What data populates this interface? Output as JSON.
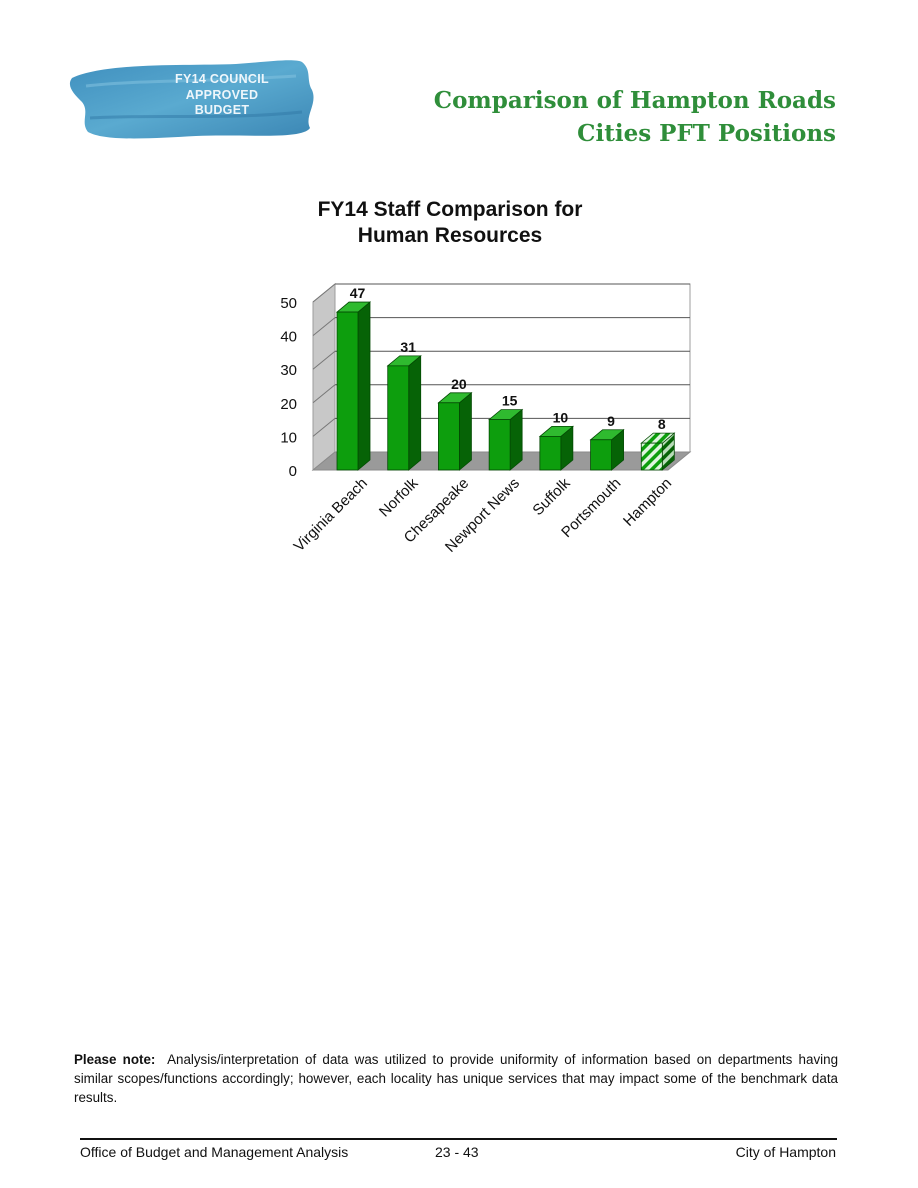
{
  "badge": {
    "line1": "FY14 COUNCIL",
    "line2": "APPROVED",
    "line3": "BUDGET"
  },
  "page_title": {
    "line1": "Comparison of Hampton Roads",
    "line2": "Cities PFT Positions"
  },
  "colors": {
    "title_green": "#2f8e3a",
    "bar_green": "#0d9e0d",
    "bar_dark": "#066306",
    "bar_top": "#2fba2f",
    "badge_blue": "#4e9fc6",
    "floor_gray": "#9a9a9a"
  },
  "chart_data": {
    "type": "bar",
    "title": "FY14  Staff Comparison for Human Resources",
    "title_lines": [
      "FY14  Staff Comparison for",
      "Human Resources"
    ],
    "categories": [
      "Virginia Beach",
      "Norfolk",
      "Chesapeake",
      "Newport News",
      "Suffolk",
      "Portsmouth",
      "Hampton"
    ],
    "values": [
      47,
      31,
      20,
      15,
      10,
      9,
      8
    ],
    "data_labels": [
      "47",
      "31",
      "20",
      "15",
      "10",
      "9",
      "8"
    ],
    "highlight_category": "Hampton",
    "ylim": [
      0,
      50
    ],
    "yticks": [
      0,
      10,
      20,
      30,
      40,
      50
    ],
    "xlabel": "",
    "ylabel": "",
    "grid": true,
    "legend": "none",
    "style": "3d"
  },
  "note": {
    "label": "Please note:",
    "text": "Analysis/interpretation of data was utilized to provide uniformity of information based on departments having similar scopes/functions accordingly; however, each locality has unique services that may impact some of the benchmark data results."
  },
  "footer": {
    "left": "Office of Budget and Management Analysis",
    "center": "23 - 43",
    "right": "City of Hampton"
  }
}
